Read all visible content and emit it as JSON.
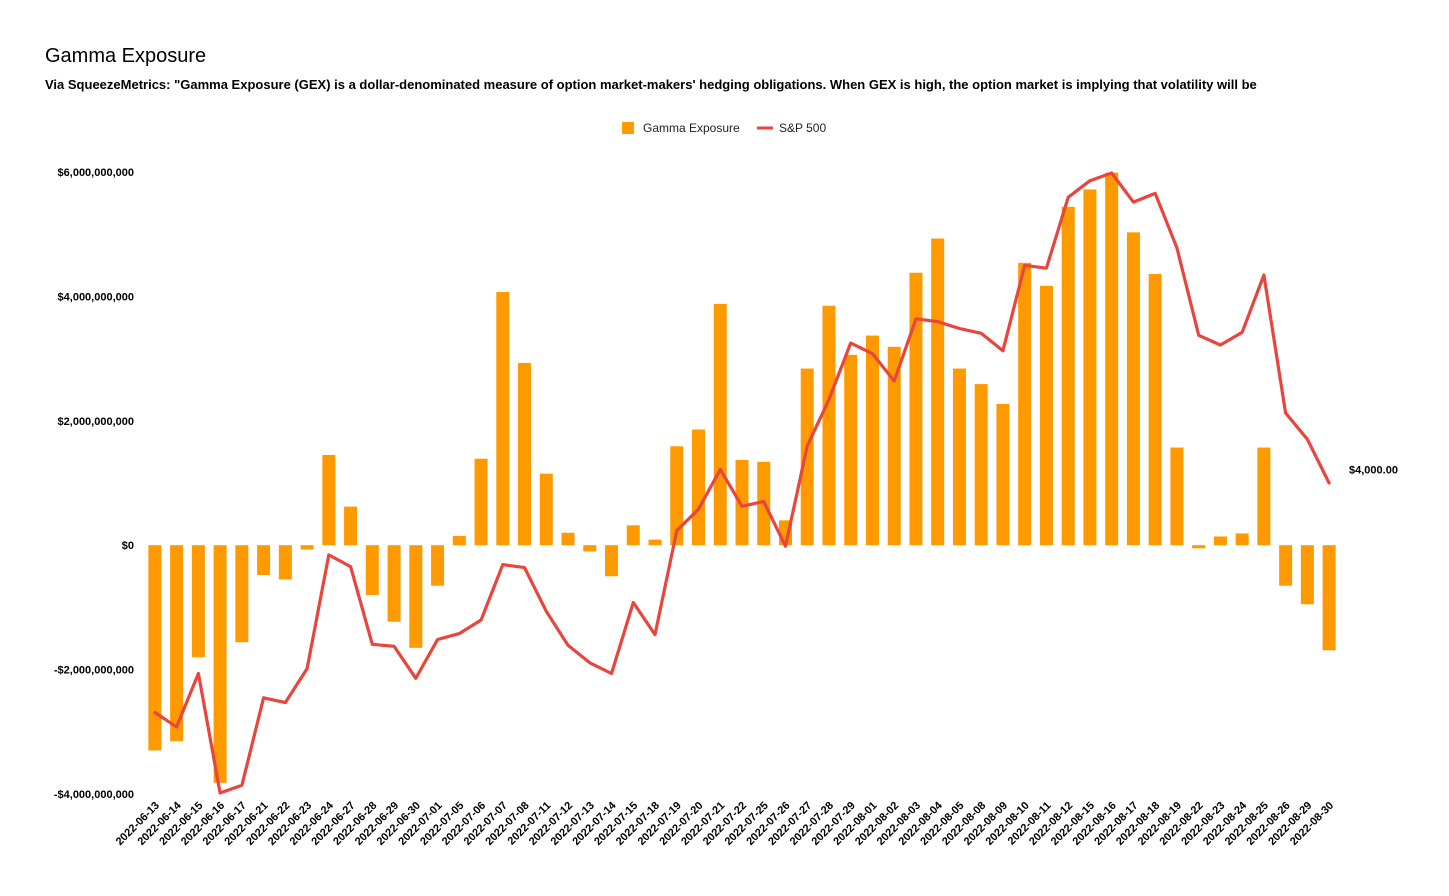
{
  "chart_data": {
    "type": "bar",
    "title": "Gamma Exposure",
    "subtitle": "Via SqueezeMetrics: \"Gamma Exposure (GEX) is a dollar-denominated measure of option market-makers' hedging obligations. When GEX is high, the option market is implying that volatility will be",
    "categories": [
      "2022-06-13",
      "2022-06-14",
      "2022-06-15",
      "2022-06-16",
      "2022-06-17",
      "2022-06-21",
      "2022-06-22",
      "2022-06-23",
      "2022-06-24",
      "2022-06-27",
      "2022-06-28",
      "2022-06-29",
      "2022-06-30",
      "2022-07-01",
      "2022-07-05",
      "2022-07-06",
      "2022-07-07",
      "2022-07-08",
      "2022-07-11",
      "2022-07-12",
      "2022-07-13",
      "2022-07-14",
      "2022-07-15",
      "2022-07-18",
      "2022-07-19",
      "2022-07-20",
      "2022-07-21",
      "2022-07-22",
      "2022-07-25",
      "2022-07-26",
      "2022-07-27",
      "2022-07-28",
      "2022-07-29",
      "2022-08-01",
      "2022-08-02",
      "2022-08-03",
      "2022-08-04",
      "2022-08-05",
      "2022-08-08",
      "2022-08-09",
      "2022-08-10",
      "2022-08-11",
      "2022-08-12",
      "2022-08-15",
      "2022-08-16",
      "2022-08-17",
      "2022-08-18",
      "2022-08-19",
      "2022-08-22",
      "2022-08-23",
      "2022-08-24",
      "2022-08-25",
      "2022-08-26",
      "2022-08-29",
      "2022-08-30"
    ],
    "series": [
      {
        "name": "Gamma Exposure",
        "type": "bar",
        "axis": "left",
        "color": "#ff9900",
        "values": [
          -3300000000,
          -3150000000,
          -1800000000,
          -3820000000,
          -1560000000,
          -480000000,
          -550000000,
          -70000000,
          1450000000,
          620000000,
          -800000000,
          -1230000000,
          -1650000000,
          -650000000,
          150000000,
          1390000000,
          4070000000,
          2930000000,
          1150000000,
          200000000,
          -100000000,
          -500000000,
          320000000,
          90000000,
          1590000000,
          1860000000,
          3880000000,
          1370000000,
          1340000000,
          400000000,
          2840000000,
          3850000000,
          3060000000,
          3370000000,
          3190000000,
          4380000000,
          4930000000,
          2840000000,
          2590000000,
          2270000000,
          4540000000,
          4170000000,
          5440000000,
          5720000000,
          5990000000,
          5030000000,
          4360000000,
          1570000000,
          -50000000,
          140000000,
          190000000,
          1570000000,
          -650000000,
          -950000000,
          -1690000000
        ]
      },
      {
        "name": "S&P 500",
        "type": "line",
        "axis": "right",
        "color": "#e8453c",
        "values": [
          3750,
          3735,
          3790,
          3667,
          3675,
          3765,
          3760,
          3795,
          3912,
          3900,
          3820,
          3818,
          3785,
          3825,
          3831,
          3845,
          3902,
          3899,
          3854,
          3819,
          3801,
          3790,
          3863,
          3830,
          3937,
          3959,
          4000,
          3962,
          3967,
          3921,
          4024,
          4072,
          4130,
          4119,
          4091,
          4155,
          4152,
          4145,
          4140,
          4122,
          4210,
          4207,
          4280,
          4297,
          4305,
          4275,
          4284,
          4228,
          4138,
          4128,
          4141,
          4200,
          4058,
          4031,
          3986
        ]
      }
    ],
    "y_left": {
      "min": -4000000000,
      "max": 6000000000,
      "ticks": [
        6000000000,
        4000000000,
        2000000000,
        0,
        -2000000000,
        -4000000000
      ],
      "tick_labels": [
        "$6,000,000,000",
        "$4,000,000,000",
        "$2,000,000,000",
        "$0",
        "-$2,000,000,000",
        "-$4,000,000,000"
      ]
    },
    "y_right": {
      "min": 3666,
      "max": 4306,
      "labeled_value": "$4,000.00"
    },
    "legend": {
      "position": "top",
      "entries": [
        "Gamma Exposure",
        "S&P 500"
      ]
    },
    "grid": false
  }
}
